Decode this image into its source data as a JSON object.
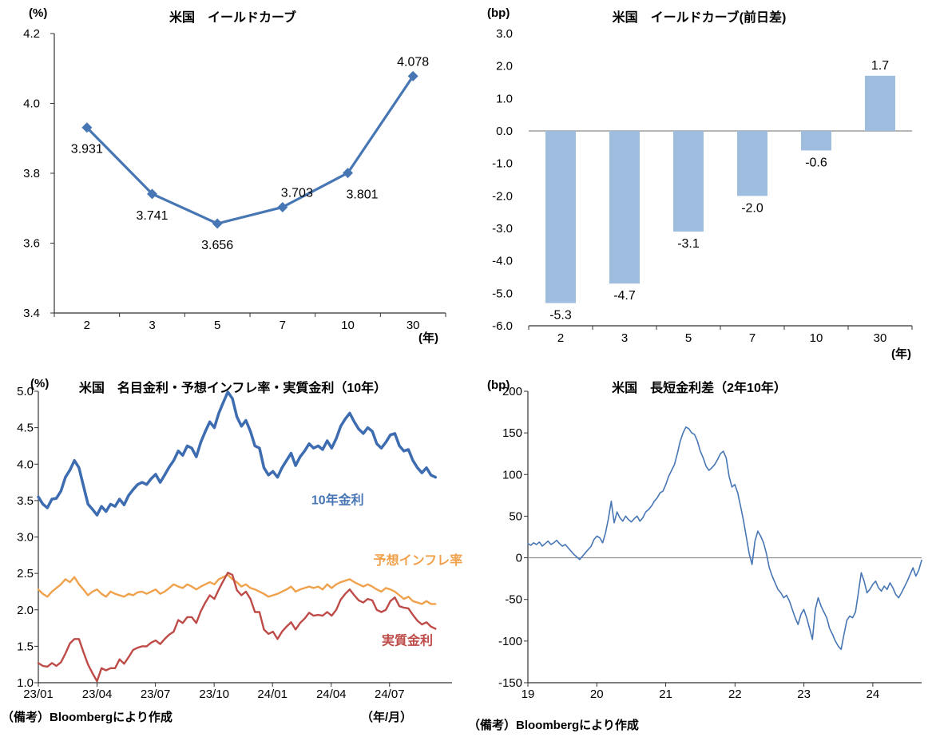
{
  "chart_data": [
    {
      "id": "us-yield-curve",
      "type": "line",
      "title": "米国　イールドカーブ",
      "unit": "(%)",
      "xunit": "(年)",
      "categories": [
        "2",
        "3",
        "5",
        "7",
        "10",
        "30"
      ],
      "values": [
        3.931,
        3.741,
        3.656,
        3.703,
        3.801,
        4.078
      ],
      "point_labels": [
        "3.931",
        "3.741",
        "3.656",
        "3.703",
        "3.801",
        "4.078"
      ],
      "label_pos": [
        "below",
        "below",
        "below",
        "above-right",
        "below-right",
        "above"
      ],
      "ylim": [
        3.4,
        4.2
      ],
      "ytick_step": 0.2,
      "ydecimals": 1,
      "color": "#4776B4",
      "grid": "off",
      "legend": "none"
    },
    {
      "id": "us-yield-curve-daily-change",
      "type": "bar",
      "title": "米国　イールドカーブ(前日差)",
      "unit": "(bp)",
      "xunit": "(年)",
      "categories": [
        "2",
        "3",
        "5",
        "7",
        "10",
        "30"
      ],
      "values": [
        -5.3,
        -4.7,
        -3.1,
        -2.0,
        -0.6,
        1.7
      ],
      "point_labels": [
        "-5.3",
        "-4.7",
        "-3.1",
        "-2.0",
        "-0.6",
        "1.7"
      ],
      "ylim": [
        -6.0,
        3.0
      ],
      "ytick_step": 1.0,
      "ydecimals": 1,
      "bar_color": "#9FBDDF",
      "zero_line": true,
      "zero_line_color": "#8C8C8C",
      "grid": "off",
      "legend": "none"
    },
    {
      "id": "us-10y-nominal-breakeven-real",
      "type": "timeseries",
      "title": "米国　名目金利・予想インフレ率・実質金利（10年）",
      "unit": "(%)",
      "xunit": "（年/月）",
      "source": "（備考）Bloombergにより作成",
      "ylim": [
        1.0,
        5.0
      ],
      "ytick_step": 0.5,
      "ydecimals": 1,
      "xspan": 0.96,
      "xticks": [
        {
          "pos": 0.0,
          "label": "23/01"
        },
        {
          "pos": 0.142,
          "label": "23/04"
        },
        {
          "pos": 0.283,
          "label": "23/07"
        },
        {
          "pos": 0.425,
          "label": "23/10"
        },
        {
          "pos": 0.566,
          "label": "24/01"
        },
        {
          "pos": 0.708,
          "label": "24/04"
        },
        {
          "pos": 0.849,
          "label": "24/07"
        }
      ],
      "series": [
        {
          "name": "10年金利",
          "color": "#3E6CB0",
          "width": 3.5,
          "values": [
            3.55,
            3.45,
            3.4,
            3.52,
            3.53,
            3.63,
            3.82,
            3.92,
            4.05,
            3.95,
            3.7,
            3.45,
            3.38,
            3.3,
            3.42,
            3.35,
            3.45,
            3.42,
            3.52,
            3.44,
            3.57,
            3.65,
            3.72,
            3.75,
            3.72,
            3.8,
            3.86,
            3.75,
            3.85,
            3.96,
            4.05,
            4.18,
            4.12,
            4.25,
            4.22,
            4.1,
            4.3,
            4.45,
            4.58,
            4.5,
            4.7,
            4.85,
            4.99,
            4.9,
            4.65,
            4.52,
            4.6,
            4.45,
            4.25,
            4.22,
            3.95,
            3.85,
            3.9,
            3.82,
            3.95,
            4.05,
            4.15,
            3.98,
            4.1,
            4.18,
            4.28,
            4.22,
            4.25,
            4.2,
            4.32,
            4.22,
            4.35,
            4.52,
            4.62,
            4.7,
            4.58,
            4.48,
            4.42,
            4.5,
            4.45,
            4.28,
            4.22,
            4.3,
            4.4,
            4.42,
            4.25,
            4.18,
            4.2,
            4.05,
            3.95,
            3.88,
            3.95,
            3.85,
            3.82
          ]
        },
        {
          "name": "予想インフレ率",
          "color": "#F0A14C",
          "width": 2.4,
          "values": [
            2.28,
            2.22,
            2.18,
            2.25,
            2.3,
            2.35,
            2.42,
            2.38,
            2.45,
            2.35,
            2.28,
            2.2,
            2.25,
            2.28,
            2.22,
            2.18,
            2.25,
            2.22,
            2.2,
            2.18,
            2.22,
            2.2,
            2.24,
            2.25,
            2.22,
            2.25,
            2.28,
            2.22,
            2.25,
            2.3,
            2.35,
            2.32,
            2.3,
            2.35,
            2.32,
            2.28,
            2.32,
            2.35,
            2.38,
            2.35,
            2.42,
            2.45,
            2.48,
            2.42,
            2.38,
            2.32,
            2.35,
            2.3,
            2.28,
            2.25,
            2.22,
            2.18,
            2.2,
            2.22,
            2.25,
            2.28,
            2.32,
            2.25,
            2.28,
            2.3,
            2.32,
            2.3,
            2.32,
            2.28,
            2.35,
            2.3,
            2.35,
            2.38,
            2.4,
            2.42,
            2.38,
            2.35,
            2.32,
            2.35,
            2.32,
            2.28,
            2.25,
            2.3,
            2.28,
            2.25,
            2.2,
            2.15,
            2.18,
            2.12,
            2.1,
            2.08,
            2.12,
            2.08,
            2.08
          ]
        },
        {
          "name": "実質金利",
          "color": "#BE4B48",
          "width": 2.4,
          "values": [
            1.27,
            1.23,
            1.22,
            1.27,
            1.23,
            1.28,
            1.4,
            1.54,
            1.6,
            1.6,
            1.42,
            1.25,
            1.13,
            1.02,
            1.2,
            1.17,
            1.2,
            1.2,
            1.32,
            1.26,
            1.35,
            1.45,
            1.48,
            1.5,
            1.5,
            1.55,
            1.58,
            1.53,
            1.6,
            1.66,
            1.7,
            1.86,
            1.82,
            1.9,
            1.9,
            1.82,
            1.98,
            2.1,
            2.2,
            2.15,
            2.28,
            2.4,
            2.51,
            2.48,
            2.27,
            2.2,
            2.25,
            2.15,
            1.97,
            1.97,
            1.73,
            1.67,
            1.7,
            1.6,
            1.7,
            1.77,
            1.83,
            1.73,
            1.82,
            1.88,
            1.96,
            1.92,
            1.93,
            1.92,
            1.97,
            1.92,
            2.0,
            2.14,
            2.22,
            2.28,
            2.2,
            2.13,
            2.1,
            2.15,
            2.13,
            2.0,
            1.97,
            2.0,
            2.12,
            2.17,
            2.05,
            2.03,
            2.02,
            1.93,
            1.85,
            1.8,
            1.83,
            1.77,
            1.74
          ]
        }
      ],
      "annotations": [
        {
          "text": "10年金利",
          "color": "#4776B4",
          "fx": 0.66,
          "y": 3.45
        },
        {
          "text": "予想インフレ率",
          "color": "#F0A14C",
          "fx": 0.81,
          "y": 2.62
        },
        {
          "text": "実質金利",
          "color": "#BE4B48",
          "fx": 0.83,
          "y": 1.52
        }
      ],
      "grid": "off",
      "legend": "inline-labels"
    },
    {
      "id": "us-2y10y-spread",
      "type": "timeseries",
      "title": "米国　長短金利差（2年10年）",
      "unit": "(bp)",
      "source": "（備考）Bloombergにより作成",
      "ylim": [
        -150,
        200
      ],
      "ytick_step": 50,
      "ydecimals": 0,
      "zero_line": true,
      "zero_line_color": "#8C8C8C",
      "xspan": 1.0,
      "xticks": [
        {
          "pos": 0.0,
          "label": "19"
        },
        {
          "pos": 0.175,
          "label": "20"
        },
        {
          "pos": 0.35,
          "label": "21"
        },
        {
          "pos": 0.526,
          "label": "22"
        },
        {
          "pos": 0.701,
          "label": "23"
        },
        {
          "pos": 0.876,
          "label": "24"
        }
      ],
      "series": [
        {
          "color": "#4776B4",
          "width": 1.6,
          "values": [
            17,
            15,
            18,
            16,
            19,
            14,
            17,
            20,
            16,
            18,
            21,
            17,
            14,
            16,
            12,
            8,
            4,
            1,
            -2,
            2,
            6,
            10,
            14,
            22,
            26,
            24,
            18,
            30,
            47,
            68,
            42,
            55,
            48,
            44,
            50,
            46,
            43,
            47,
            50,
            44,
            48,
            55,
            58,
            62,
            68,
            72,
            78,
            80,
            88,
            98,
            105,
            112,
            125,
            140,
            150,
            157,
            155,
            150,
            148,
            140,
            128,
            120,
            110,
            105,
            108,
            112,
            118,
            125,
            128,
            120,
            98,
            85,
            88,
            78,
            62,
            45,
            25,
            5,
            -8,
            20,
            32,
            26,
            18,
            5,
            -12,
            -22,
            -30,
            -38,
            -42,
            -48,
            -45,
            -52,
            -62,
            -72,
            -80,
            -68,
            -62,
            -72,
            -85,
            -98,
            -62,
            -48,
            -58,
            -65,
            -72,
            -85,
            -92,
            -100,
            -106,
            -110,
            -92,
            -75,
            -70,
            -72,
            -65,
            -42,
            -18,
            -28,
            -42,
            -38,
            -32,
            -28,
            -36,
            -40,
            -34,
            -38,
            -30,
            -36,
            -44,
            -48,
            -42,
            -35,
            -28,
            -20,
            -12,
            -22,
            -15,
            -3
          ]
        }
      ],
      "grid": "off",
      "legend": "none"
    }
  ]
}
